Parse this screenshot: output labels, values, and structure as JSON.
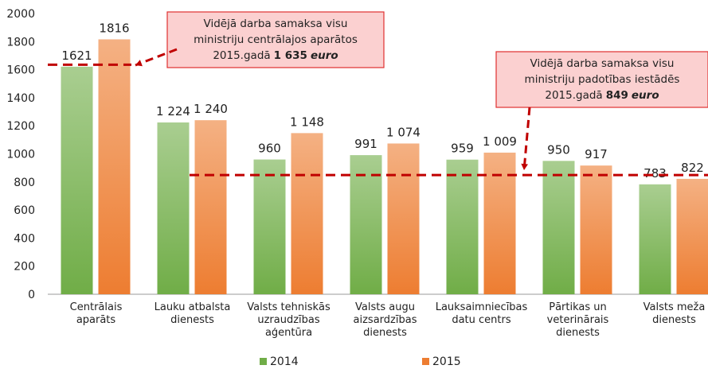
{
  "chart_data": {
    "type": "bar",
    "categories": [
      "Centrālais\naparāts",
      "Lauku atbalsta\ndienests",
      "Valsts tehniskās\nuzraudzības\naģentūra",
      "Valsts augu\naizsardzības\ndienests",
      "Lauksaimniecības\ndatu centrs",
      "Pārtikas un\nveterinārais\ndienests",
      "Valsts meža\ndienests"
    ],
    "series": [
      {
        "name": "2014",
        "color": "#70ad47",
        "values": [
          1621,
          1224,
          960,
          991,
          959,
          950,
          783
        ],
        "value_labels": [
          "1621",
          "1 224",
          "960",
          "991",
          "959",
          "950",
          "783"
        ]
      },
      {
        "name": "2015",
        "color": "#ed7d31",
        "values": [
          1816,
          1240,
          1148,
          1074,
          1009,
          917,
          822
        ],
        "value_labels": [
          "1816",
          "1 240",
          "1 148",
          "1 074",
          "1 009",
          "917",
          "822"
        ]
      }
    ],
    "ylim": [
      0,
      2000
    ],
    "yticks": [
      0,
      200,
      400,
      600,
      800,
      1000,
      1200,
      1400,
      1600,
      1800,
      2000
    ],
    "grid": false,
    "legend": "bottom",
    "annotations": [
      {
        "lines": [
          "Vidējā darba samaksa visu",
          "ministriju centrālajos aparātos"
        ],
        "prefix": "2015.gadā",
        "amount": "1 635",
        "unit": "euro",
        "value": 1635
      },
      {
        "lines": [
          "Vidējā darba samaksa visu",
          "ministriju padotības iestādēs"
        ],
        "prefix": "2015.gadā",
        "amount": "849",
        "unit": "euro",
        "value": 849
      }
    ]
  }
}
